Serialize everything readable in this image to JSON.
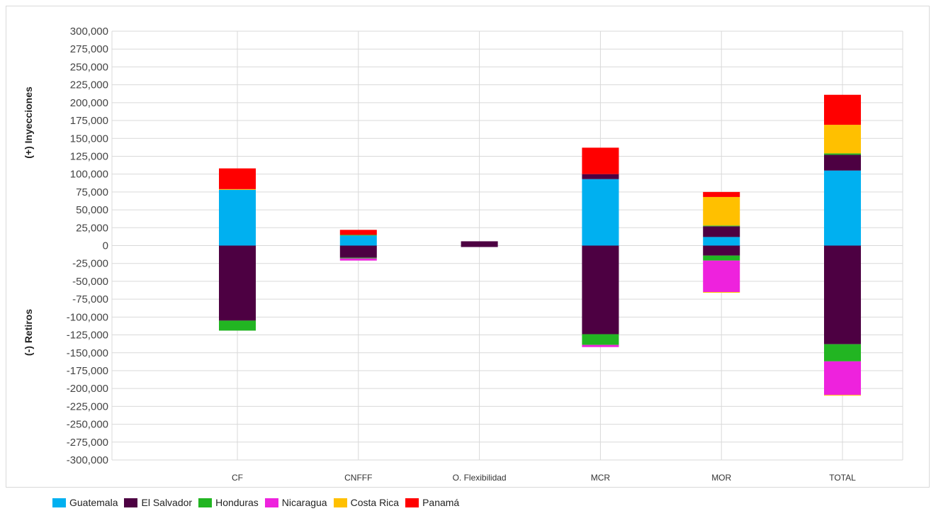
{
  "chart_data": {
    "type": "bar",
    "stacked": true,
    "ylabel_positive": "(+) Inyecciones",
    "ylabel_negative": "(-) Retiros",
    "ylim": [
      -300000,
      300000
    ],
    "ytick_step": 25000,
    "grid": true,
    "legend_position": "bottom-left",
    "categories": [
      "CF",
      "CNFFF",
      "O. Flexibilidad",
      "MCR",
      "MOR",
      "TOTAL"
    ],
    "series": [
      {
        "name": "Guatemala",
        "color": "#00b0f0",
        "positive": [
          78000,
          14000,
          0,
          93000,
          12000,
          105000
        ],
        "negative": [
          0,
          0,
          0,
          0,
          0,
          0
        ]
      },
      {
        "name": "El Salvador",
        "color": "#4d0042",
        "positive": [
          0,
          0,
          6000,
          7000,
          15000,
          22000
        ],
        "negative": [
          -105000,
          -17000,
          -2000,
          -124000,
          -14000,
          -138000
        ]
      },
      {
        "name": "Honduras",
        "color": "#22b522",
        "positive": [
          0,
          1000,
          0,
          0,
          1000,
          2000
        ],
        "negative": [
          -14000,
          -1000,
          0,
          -15000,
          -7000,
          -24000
        ]
      },
      {
        "name": "Nicaragua",
        "color": "#ee22dd",
        "positive": [
          0,
          0,
          0,
          0,
          0,
          0
        ],
        "negative": [
          0,
          -3000,
          0,
          -3000,
          -44000,
          -47000
        ]
      },
      {
        "name": "Costa Rica",
        "color": "#ffc000",
        "positive": [
          1000,
          0,
          0,
          0,
          40000,
          40000
        ],
        "negative": [
          0,
          0,
          0,
          0,
          -1000,
          -1000
        ]
      },
      {
        "name": "Panamá",
        "color": "#ff0000",
        "positive": [
          29000,
          7000,
          0,
          37000,
          7000,
          42000
        ],
        "negative": [
          0,
          0,
          0,
          0,
          0,
          0
        ]
      }
    ]
  }
}
